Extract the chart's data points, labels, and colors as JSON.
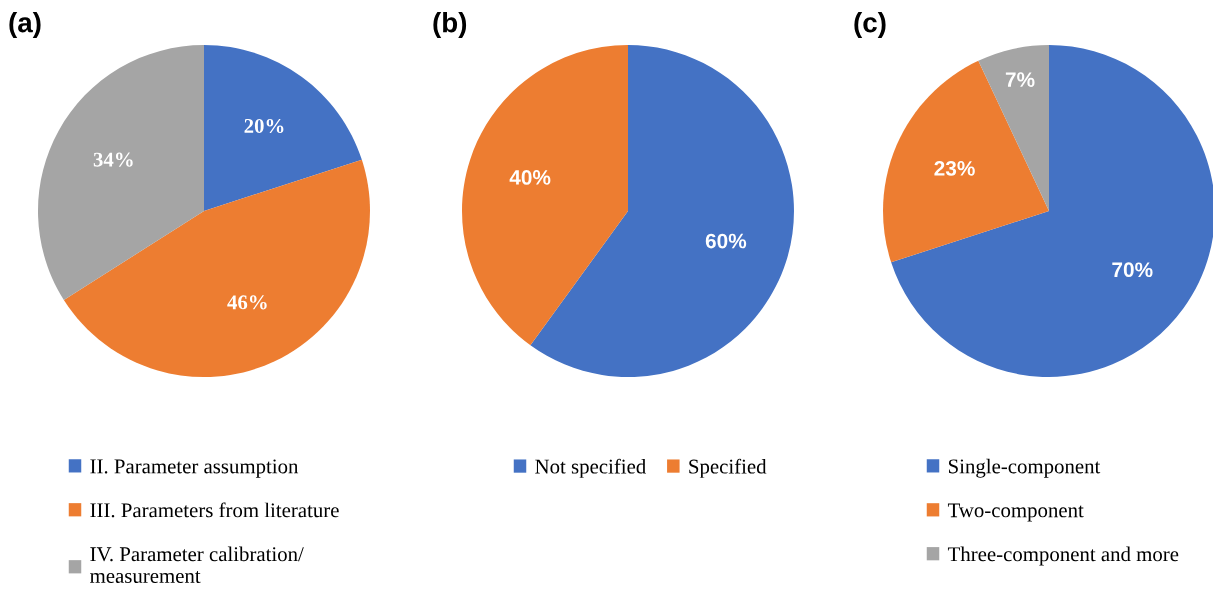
{
  "chart_data": [
    {
      "type": "pie",
      "title": "(a)",
      "categories": [
        "II. Parameter assumption",
        "III. Parameters from literature",
        "IV. Parameter calibration/\nmeasurement"
      ],
      "values": [
        20,
        46,
        34
      ],
      "colors": [
        "#4472c4",
        "#ed7d31",
        "#a5a5a5"
      ],
      "value_labels": [
        "20%",
        "46%",
        "34%"
      ],
      "legend": "bottom"
    },
    {
      "type": "pie",
      "title": "(b)",
      "categories": [
        "Not specified",
        "Specified"
      ],
      "values": [
        60,
        40
      ],
      "colors": [
        "#4472c4",
        "#ed7d31"
      ],
      "value_labels": [
        "60%",
        "40%"
      ],
      "legend": "bottom"
    },
    {
      "type": "pie",
      "title": "(c)",
      "categories": [
        "Single-component",
        "Two-component",
        "Three-component and more"
      ],
      "values": [
        70,
        23,
        7
      ],
      "colors": [
        "#4472c4",
        "#ed7d31",
        "#a5a5a5"
      ],
      "value_labels": [
        "70%",
        "23%",
        "7%"
      ],
      "legend": "bottom"
    }
  ]
}
